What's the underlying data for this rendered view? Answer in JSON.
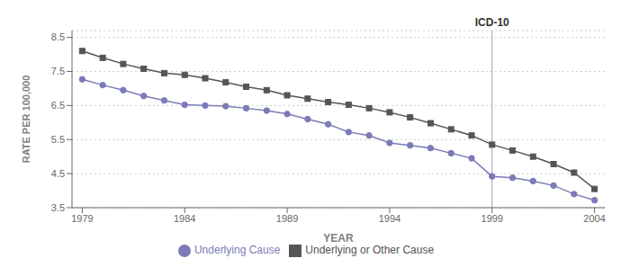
{
  "chart_data": {
    "type": "line",
    "x": [
      1979,
      1980,
      1981,
      1982,
      1983,
      1984,
      1985,
      1986,
      1987,
      1988,
      1989,
      1990,
      1991,
      1992,
      1993,
      1994,
      1995,
      1996,
      1997,
      1998,
      1999,
      2000,
      2001,
      2002,
      2003,
      2004
    ],
    "series": [
      {
        "name": "Underlying Cause",
        "color": "#7b7bb8",
        "marker": "circle",
        "values": [
          7.27,
          7.1,
          6.95,
          6.78,
          6.65,
          6.52,
          6.5,
          6.48,
          6.42,
          6.35,
          6.25,
          6.1,
          5.95,
          5.72,
          5.62,
          5.4,
          5.33,
          5.25,
          5.1,
          4.95,
          4.42,
          4.38,
          4.28,
          4.15,
          3.9,
          3.72
        ]
      },
      {
        "name": "Underlying or Other Cause",
        "color": "#555555",
        "marker": "square",
        "values": [
          8.1,
          7.9,
          7.72,
          7.58,
          7.45,
          7.4,
          7.3,
          7.18,
          7.05,
          6.95,
          6.8,
          6.7,
          6.6,
          6.52,
          6.42,
          6.3,
          6.15,
          5.98,
          5.8,
          5.62,
          5.35,
          5.18,
          5.0,
          4.78,
          4.53,
          4.05
        ]
      }
    ],
    "x_label": "YEAR",
    "y_label": "RATE PER 100,000",
    "xlim": [
      1978.5,
      2004.5
    ],
    "xticks": [
      1979,
      1984,
      1989,
      1994,
      1999,
      2004
    ],
    "ylim": [
      3.5,
      8.7
    ],
    "yticks": [
      3.5,
      4.5,
      5.5,
      6.5,
      7.5,
      8.5
    ],
    "grid": true,
    "legend": "bottom",
    "annotations": [
      {
        "text": "ICD-10",
        "x": 1999,
        "color": "#a0a0cc"
      }
    ]
  }
}
